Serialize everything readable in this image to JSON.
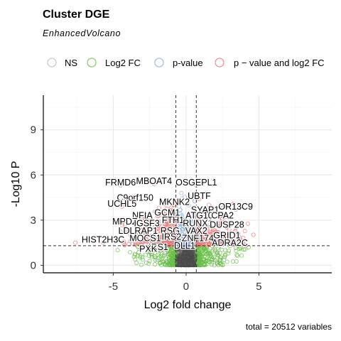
{
  "chart_data": {
    "type": "scatter",
    "title": "Cluster DGE",
    "subtitle": "EnhancedVolcano",
    "xlabel": "Log2 fold change",
    "ylabel": "-Log10 P",
    "caption": "total = 20512 variables",
    "xlim": [
      -9.8,
      10
    ],
    "ylim": [
      -0.5,
      11.3
    ],
    "xticks": [
      -5,
      0,
      5
    ],
    "yticks": [
      0,
      3,
      6,
      9
    ],
    "fc_cutoff": 0.7,
    "p_cutoff_log10": 1.3,
    "legend": {
      "position": "top",
      "entries": [
        {
          "key": "ns",
          "label": "NS",
          "color": "#bbbbbb"
        },
        {
          "key": "fc",
          "label": "Log2 FC",
          "color": "#6abf4b"
        },
        {
          "key": "p",
          "label": "p-value",
          "color": "#8fb0e6"
        },
        {
          "key": "both",
          "label": "p − value and log2 FC",
          "color": "#ee7777"
        }
      ]
    },
    "labels": [
      {
        "name": "FRMD6",
        "x": -4.5,
        "y": 5.3
      },
      {
        "name": "MBOAT4",
        "x": -2.2,
        "y": 5.4
      },
      {
        "name": "OSGEPL1",
        "x": 0.7,
        "y": 5.3
      },
      {
        "name": "UBTF",
        "x": 0.9,
        "y": 4.4
      },
      {
        "name": "C9orf150",
        "x": -3.5,
        "y": 4.3
      },
      {
        "name": "MKNK2",
        "x": -0.8,
        "y": 4.0
      },
      {
        "name": "UCHL5",
        "x": -4.4,
        "y": 3.9
      },
      {
        "name": "SYAP1",
        "x": 1.3,
        "y": 3.5
      },
      {
        "name": "OR13C9",
        "x": 3.4,
        "y": 3.7
      },
      {
        "name": "GCM1",
        "x": -1.3,
        "y": 3.3
      },
      {
        "name": "NFIA",
        "x": -3.0,
        "y": 3.1
      },
      {
        "name": "ATG10",
        "x": 0.9,
        "y": 3.1
      },
      {
        "name": "CPA2",
        "x": 2.5,
        "y": 3.1
      },
      {
        "name": "FTH1",
        "x": -0.9,
        "y": 2.8
      },
      {
        "name": "RUNX1",
        "x": 0.8,
        "y": 2.6
      },
      {
        "name": "MPDZ",
        "x": -4.2,
        "y": 2.7
      },
      {
        "name": "IGSF3",
        "x": -2.7,
        "y": 2.6
      },
      {
        "name": "DUSP28",
        "x": 2.8,
        "y": 2.5
      },
      {
        "name": "LDLRAP1",
        "x": -3.3,
        "y": 2.1
      },
      {
        "name": "RSG",
        "x": -1.1,
        "y": 2.1
      },
      {
        "name": "VAX2",
        "x": 0.7,
        "y": 2.1
      },
      {
        "name": "GRID1",
        "x": 2.8,
        "y": 1.8
      },
      {
        "name": "MOCS1",
        "x": -2.8,
        "y": 1.6
      },
      {
        "name": "IRS2",
        "x": -1.0,
        "y": 1.7
      },
      {
        "name": "ZNF174",
        "x": 0.8,
        "y": 1.6
      },
      {
        "name": "HIST2H3C",
        "x": -5.7,
        "y": 1.5
      },
      {
        "name": "ADRA2C",
        "x": 3.0,
        "y": 1.3
      },
      {
        "name": "IRS1",
        "x": -1.9,
        "y": 1.0
      },
      {
        "name": "DLL1",
        "x": -0.1,
        "y": 1.1
      },
      {
        "name": "PXK",
        "x": -2.6,
        "y": 0.9
      }
    ]
  }
}
